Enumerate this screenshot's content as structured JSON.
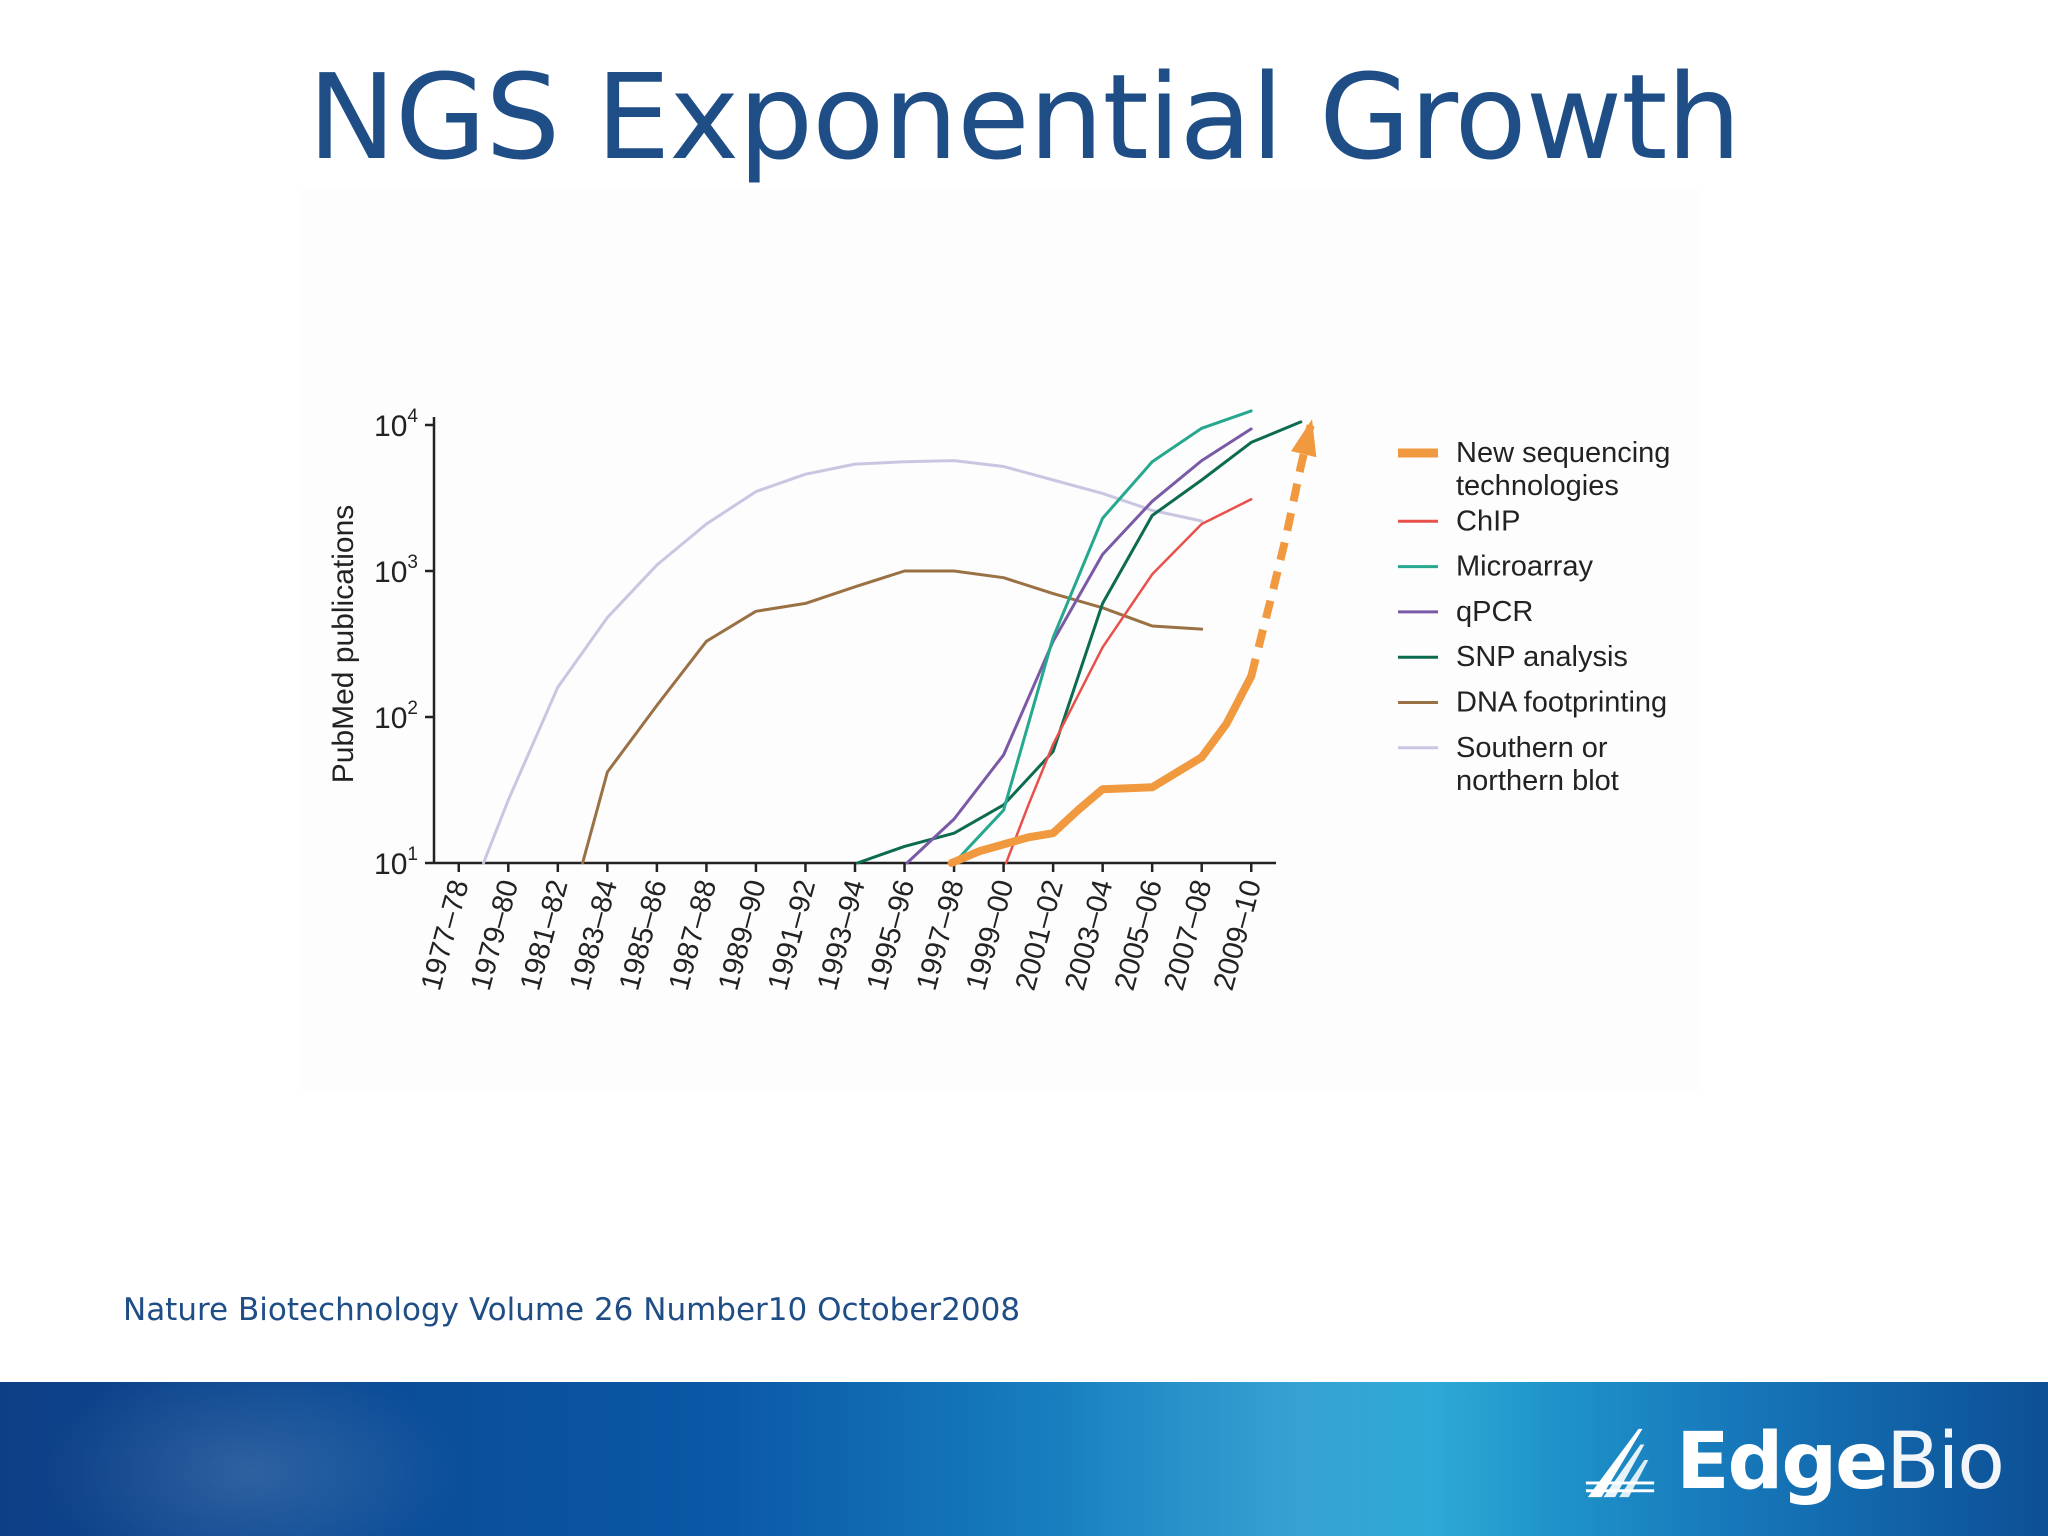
{
  "slide": {
    "title": "NGS Exponential Growth",
    "citation": "Nature Biotechnology Volume 26  Number10  October2008"
  },
  "logo": {
    "bold_part": "Edge",
    "light_part": "Bio",
    "icon": "edgebio-wing-icon"
  },
  "colors": {
    "title": "#1f4e87",
    "footer_start": "#0d3f86",
    "footer_end": "#24a5d4"
  },
  "chart_data": {
    "type": "line",
    "title": "",
    "xlabel": "",
    "ylabel": "PubMed publications",
    "y_scale": "log",
    "ylim": [
      10,
      10000
    ],
    "y_ticks": [
      {
        "value": 10,
        "base": "10",
        "exp": "1"
      },
      {
        "value": 100,
        "base": "10",
        "exp": "2"
      },
      {
        "value": 1000,
        "base": "10",
        "exp": "3"
      },
      {
        "value": 10000,
        "base": "10",
        "exp": "4"
      }
    ],
    "categories": [
      "1977–78",
      "1979–80",
      "1981–82",
      "1983–84",
      "1985–86",
      "1987–88",
      "1989–90",
      "1991–92",
      "1993–94",
      "1995–96",
      "1997–98",
      "1999–00",
      "2001–02",
      "2003–04",
      "2005–06",
      "2007–08",
      "2009–10"
    ],
    "legend_position": "right",
    "grid": false,
    "series": [
      {
        "name": "New sequencing technologies",
        "color": "#f0993e",
        "width": 8,
        "points": [
          [
            9.95,
            10
          ],
          [
            10.5,
            12
          ],
          [
            11.5,
            15
          ],
          [
            12.0,
            16
          ],
          [
            12.5,
            23
          ],
          [
            13.0,
            32
          ],
          [
            14.0,
            33
          ],
          [
            15.0,
            53
          ],
          [
            15.5,
            90
          ],
          [
            16.0,
            190
          ]
        ],
        "projection": [
          [
            16.0,
            190
          ],
          [
            16.4,
            650
          ],
          [
            16.7,
            1700
          ],
          [
            17.0,
            5200
          ],
          [
            17.2,
            10000
          ]
        ]
      },
      {
        "name": "ChIP",
        "color": "#e8514b",
        "width": 2.5,
        "points": [
          [
            11.05,
            10
          ],
          [
            11.5,
            25
          ],
          [
            12.0,
            65
          ],
          [
            13.0,
            300
          ],
          [
            14.0,
            950
          ],
          [
            15.0,
            2100
          ],
          [
            16.0,
            3100
          ]
        ]
      },
      {
        "name": "Microarray",
        "color": "#26a88f",
        "width": 3,
        "points": [
          [
            10.0,
            10
          ],
          [
            11.0,
            23
          ],
          [
            12.0,
            350
          ],
          [
            13.0,
            2300
          ],
          [
            14.0,
            5600
          ],
          [
            15.0,
            9500
          ],
          [
            16.0,
            12500
          ]
        ]
      },
      {
        "name": "qPCR",
        "color": "#7a5aa6",
        "width": 3,
        "points": [
          [
            9.05,
            10
          ],
          [
            10.0,
            20
          ],
          [
            11.0,
            55
          ],
          [
            12.0,
            330
          ],
          [
            13.0,
            1300
          ],
          [
            14.0,
            3000
          ],
          [
            15.0,
            5700
          ],
          [
            16.0,
            9400
          ]
        ]
      },
      {
        "name": "SNP analysis",
        "color": "#0d6b4f",
        "width": 3,
        "points": [
          [
            8.05,
            10
          ],
          [
            9.0,
            13
          ],
          [
            10.0,
            16
          ],
          [
            11.0,
            25
          ],
          [
            12.0,
            58
          ],
          [
            13.0,
            600
          ],
          [
            14.0,
            2400
          ],
          [
            15.0,
            4200
          ],
          [
            16.0,
            7600
          ],
          [
            17.0,
            10500
          ]
        ]
      },
      {
        "name": "DNA footprinting",
        "color": "#9a7144",
        "width": 3,
        "points": [
          [
            2.5,
            10
          ],
          [
            3.0,
            42
          ],
          [
            4.0,
            120
          ],
          [
            5.0,
            330
          ],
          [
            6.0,
            530
          ],
          [
            7.0,
            600
          ],
          [
            8.0,
            780
          ],
          [
            9.0,
            1000
          ],
          [
            10.0,
            1000
          ],
          [
            11.0,
            900
          ],
          [
            12.0,
            700
          ],
          [
            13.0,
            560
          ],
          [
            14.0,
            420
          ],
          [
            15.0,
            400
          ]
        ]
      },
      {
        "name": "Southern or northern blot",
        "color": "#c9c6e2",
        "width": 3,
        "points": [
          [
            0.5,
            10
          ],
          [
            1.0,
            27
          ],
          [
            2.0,
            160
          ],
          [
            3.0,
            480
          ],
          [
            4.0,
            1100
          ],
          [
            5.0,
            2100
          ],
          [
            6.0,
            3500
          ],
          [
            7.0,
            4600
          ],
          [
            8.0,
            5400
          ],
          [
            9.0,
            5600
          ],
          [
            10.0,
            5700
          ],
          [
            11.0,
            5200
          ],
          [
            12.0,
            4200
          ],
          [
            13.0,
            3400
          ],
          [
            14.0,
            2600
          ],
          [
            15.0,
            2200
          ]
        ]
      }
    ],
    "legend": [
      {
        "series": 0,
        "lines": [
          "New sequencing",
          "technologies"
        ]
      },
      {
        "series": 1,
        "lines": [
          "ChIP"
        ]
      },
      {
        "series": 2,
        "lines": [
          "Microarray"
        ]
      },
      {
        "series": 3,
        "lines": [
          "qPCR"
        ]
      },
      {
        "series": 4,
        "lines": [
          "SNP analysis"
        ]
      },
      {
        "series": 5,
        "lines": [
          "DNA footprinting"
        ]
      },
      {
        "series": 6,
        "lines": [
          "Southern or",
          "northern blot"
        ]
      }
    ]
  }
}
